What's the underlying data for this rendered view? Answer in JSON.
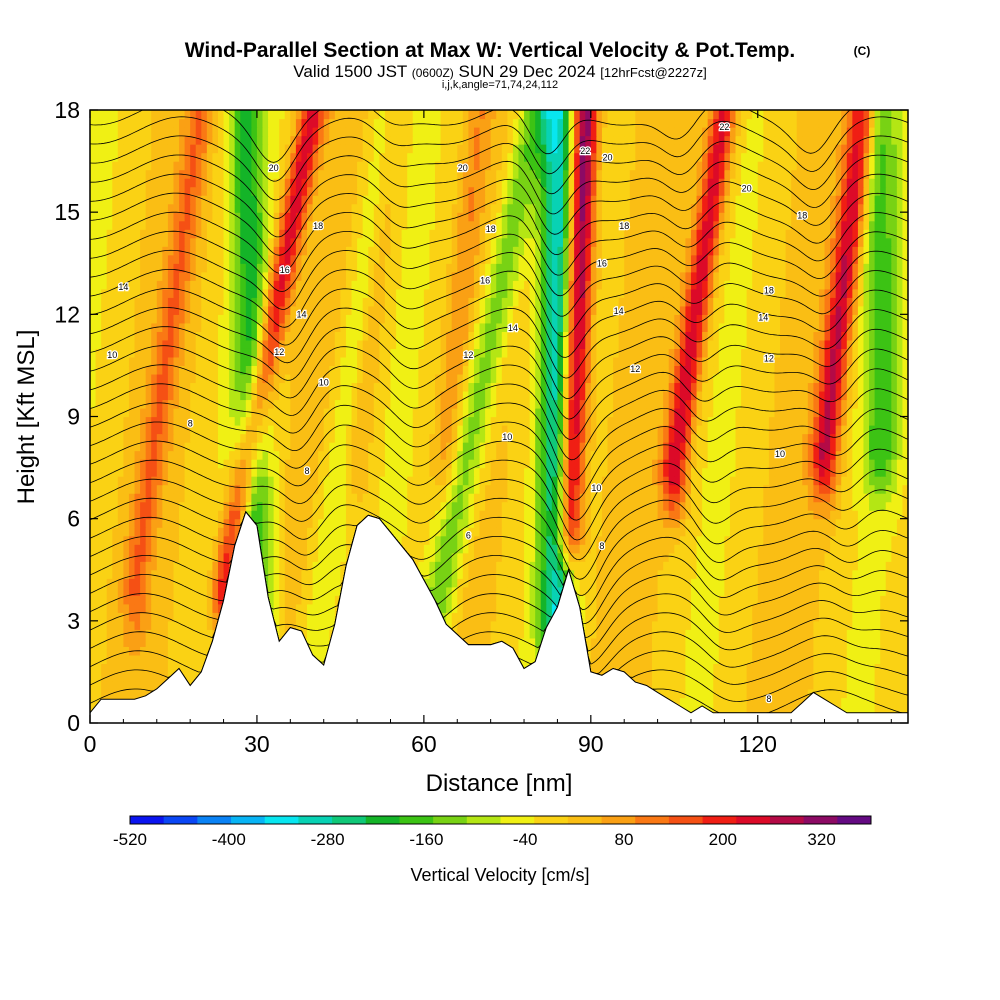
{
  "chart_data": {
    "type": "heatmap",
    "title": "Wind-Parallel Section at Max W: Vertical Velocity & Pot.Temp.",
    "title_mark": "(C)",
    "subtitle": {
      "valid": "Valid 1500 JST",
      "utc": "(0600Z)",
      "date": "SUN 29 Dec 2024",
      "forecast": "[12hrFcst@2227z]"
    },
    "indices": "i,j,k,angle=71,74,24,112",
    "xlabel": "Distance [nm]",
    "ylabel": "Height [Kft MSL]",
    "xlim": [
      0,
      147
    ],
    "ylim": [
      0,
      18
    ],
    "x_ticks": [
      0,
      30,
      60,
      90,
      120
    ],
    "y_ticks": [
      0,
      3,
      6,
      9,
      12,
      15,
      18
    ],
    "grid": false,
    "colorbar": {
      "label": "Vertical Velocity [cm/s]",
      "tick_labels": [
        "-520",
        "-400",
        "-280",
        "-160",
        "-40",
        "80",
        "200",
        "320"
      ],
      "tick_values": [
        -520,
        -400,
        -280,
        -160,
        -40,
        80,
        200,
        320
      ],
      "min": -520,
      "max": 380,
      "colors": [
        "#0a14f0",
        "#0a46f5",
        "#0a82f5",
        "#08b4f5",
        "#08e6f0",
        "#08d2b4",
        "#10c878",
        "#14b428",
        "#3cc314",
        "#78d214",
        "#b4e614",
        "#f0f014",
        "#fad214",
        "#fabe14",
        "#faa014",
        "#fa7814",
        "#f55014",
        "#f01e14",
        "#dc0a28",
        "#b40a46",
        "#8c0a64",
        "#640a82"
      ]
    },
    "terrain": {
      "x": [
        0,
        2,
        4,
        6,
        8,
        10,
        12,
        14,
        16,
        18,
        20,
        22,
        24,
        26,
        28,
        30,
        32,
        34,
        36,
        38,
        40,
        42,
        44,
        46,
        48,
        50,
        52,
        54,
        56,
        58,
        60,
        62,
        64,
        66,
        68,
        70,
        72,
        74,
        76,
        78,
        80,
        82,
        84,
        86,
        88,
        90,
        92,
        94,
        96,
        98,
        100,
        102,
        104,
        106,
        108,
        110,
        112,
        114,
        116,
        118,
        120,
        122,
        124,
        126,
        128,
        130,
        132,
        134,
        136,
        138,
        140,
        142,
        144,
        146,
        147
      ],
      "y": [
        0.3,
        0.7,
        0.7,
        0.7,
        0.7,
        0.8,
        1.0,
        1.3,
        1.6,
        1.1,
        1.5,
        2.4,
        3.6,
        5.2,
        6.2,
        5.8,
        3.7,
        2.4,
        2.8,
        2.7,
        2.0,
        1.7,
        2.9,
        4.6,
        5.8,
        6.1,
        6.0,
        5.6,
        5.2,
        4.8,
        4.2,
        3.6,
        2.9,
        2.6,
        2.3,
        2.3,
        2.3,
        2.4,
        2.2,
        1.6,
        1.8,
        2.8,
        3.4,
        4.5,
        3.4,
        1.5,
        1.4,
        1.6,
        1.5,
        1.2,
        1.1,
        0.9,
        0.7,
        0.5,
        0.3,
        0.5,
        0.3,
        0.3,
        0.3,
        0.3,
        0.3,
        0.3,
        0.3,
        0.3,
        0.6,
        0.9,
        0.7,
        0.5,
        0.3,
        0.3,
        0.3,
        0.3,
        0.3,
        0.3,
        0.3
      ]
    },
    "updrafts": [
      {
        "x_base": 24,
        "x_top": 40,
        "y_base": 4.0,
        "peak": 240
      },
      {
        "x_base": 86,
        "x_top": 89,
        "y_base": 6.0,
        "peak": 380
      },
      {
        "x_base": 105,
        "x_top": 114,
        "y_base": 7.5,
        "peak": 250
      },
      {
        "x_base": 132,
        "x_top": 139,
        "y_base": 8.0,
        "peak": 250
      },
      {
        "x_base": 8,
        "x_top": 20,
        "y_base": 4.0,
        "peak": 110
      },
      {
        "x_base": 48,
        "x_top": 55,
        "y_base": 8.0,
        "peak": 90
      },
      {
        "x_base": 64,
        "x_top": 70,
        "y_base": 8.0,
        "peak": 80
      }
    ],
    "downdrafts": [
      {
        "x_base": 30,
        "x_top": 28,
        "y_base": 3.0,
        "peak": -180
      },
      {
        "x_base": 40,
        "x_top": 54,
        "y_base": 2.0,
        "peak": -90
      },
      {
        "x_base": 62,
        "x_top": 80,
        "y_base": 3.0,
        "peak": -160
      },
      {
        "x_base": 84,
        "x_top": 84,
        "y_base": 3.0,
        "peak": -300
      },
      {
        "x_base": 142,
        "x_top": 142,
        "y_base": 8.0,
        "peak": -150
      }
    ],
    "isentrope_labels": [
      {
        "text": "20",
        "x": 33,
        "y": 16.3
      },
      {
        "text": "20",
        "x": 67,
        "y": 16.3
      },
      {
        "text": "20",
        "x": 93,
        "y": 16.6
      },
      {
        "text": "20",
        "x": 118,
        "y": 15.7
      },
      {
        "text": "22",
        "x": 89,
        "y": 16.8
      },
      {
        "text": "22",
        "x": 114,
        "y": 17.5
      },
      {
        "text": "18",
        "x": 41,
        "y": 14.6
      },
      {
        "text": "18",
        "x": 72,
        "y": 14.5
      },
      {
        "text": "18",
        "x": 96,
        "y": 14.6
      },
      {
        "text": "18",
        "x": 128,
        "y": 14.9
      },
      {
        "text": "18",
        "x": 122,
        "y": 12.7
      },
      {
        "text": "16",
        "x": 35,
        "y": 13.3
      },
      {
        "text": "16",
        "x": 71,
        "y": 13.0
      },
      {
        "text": "16",
        "x": 92,
        "y": 13.5
      },
      {
        "text": "14",
        "x": 6,
        "y": 12.8
      },
      {
        "text": "14",
        "x": 38,
        "y": 12.0
      },
      {
        "text": "14",
        "x": 76,
        "y": 11.6
      },
      {
        "text": "14",
        "x": 95,
        "y": 12.1
      },
      {
        "text": "14",
        "x": 121,
        "y": 11.9
      },
      {
        "text": "12",
        "x": 34,
        "y": 10.9
      },
      {
        "text": "12",
        "x": 68,
        "y": 10.8
      },
      {
        "text": "12",
        "x": 98,
        "y": 10.4
      },
      {
        "text": "12",
        "x": 122,
        "y": 10.7
      },
      {
        "text": "10",
        "x": 4,
        "y": 10.8
      },
      {
        "text": "10",
        "x": 42,
        "y": 10.0
      },
      {
        "text": "10",
        "x": 75,
        "y": 8.4
      },
      {
        "text": "10",
        "x": 91,
        "y": 6.9
      },
      {
        "text": "10",
        "x": 124,
        "y": 7.9
      },
      {
        "text": "8",
        "x": 18,
        "y": 8.8
      },
      {
        "text": "8",
        "x": 39,
        "y": 7.4
      },
      {
        "text": "8",
        "x": 92,
        "y": 5.2
      },
      {
        "text": "8",
        "x": 122,
        "y": 0.7
      },
      {
        "text": "6",
        "x": 68,
        "y": 5.5
      }
    ]
  }
}
